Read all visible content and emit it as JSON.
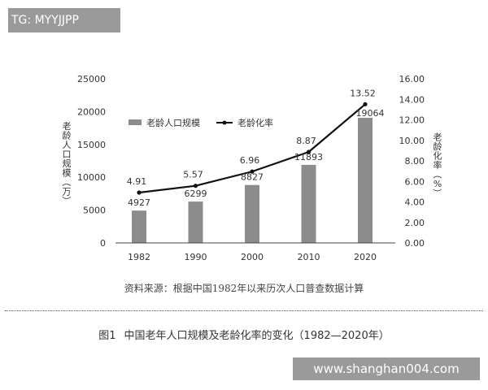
{
  "watermark_top": "TG: MYYJJPP",
  "watermark_bottom": "www.shanghan004.com",
  "source_note": "资料来源：根据中国1982年以来历次人口普查数据计算",
  "figure_caption": {
    "number": "图1",
    "title": "中国老年人口规模及老龄化率的变化（1982—2020年）"
  },
  "chart_data": {
    "type": "bar",
    "categories": [
      "1982",
      "1990",
      "2000",
      "2010",
      "2020"
    ],
    "series": [
      {
        "name": "老龄人口规模",
        "type": "bar",
        "axis": "left",
        "values": [
          4927,
          6299,
          8827,
          11893,
          19064
        ],
        "data_labels": [
          "4927",
          "6299",
          "8827",
          "11893",
          "19064"
        ]
      },
      {
        "name": "老龄化率",
        "type": "line",
        "axis": "right",
        "values": [
          4.91,
          5.57,
          6.96,
          8.87,
          13.52
        ],
        "data_labels": [
          "4.91",
          "5.57",
          "6.96",
          "8.87",
          "13.52"
        ]
      }
    ],
    "ylabel_left": "老龄人口规模（万）",
    "ylabel_right": "老龄化率（%）",
    "ylim_left": [
      0,
      25000
    ],
    "yticks_left": [
      "0",
      "5000",
      "10000",
      "15000",
      "20000",
      "25000"
    ],
    "ylim_right": [
      0,
      16
    ],
    "yticks_right": [
      "0.00",
      "2.00",
      "4.00",
      "6.00",
      "8.00",
      "10.00",
      "12.00",
      "14.00",
      "16.00"
    ],
    "legend_position": "top-left",
    "grid": false,
    "colors": {
      "bar": "#8c8c8c",
      "line": "#111111",
      "axis": "#444444"
    }
  }
}
